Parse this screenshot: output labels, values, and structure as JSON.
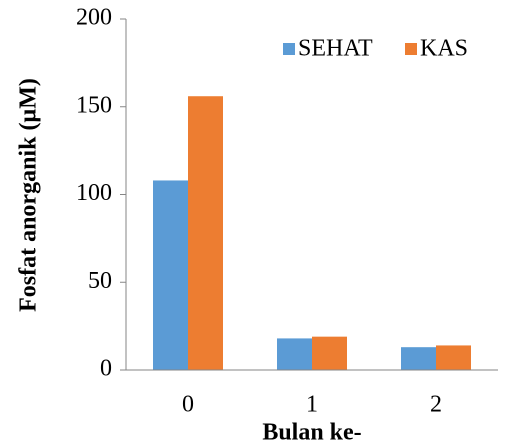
{
  "chart_data": {
    "type": "bar",
    "x_label": "Bulan ke-",
    "y_label": "Fosfat anorganik (µM)",
    "categories": [
      "0",
      "1",
      "2"
    ],
    "series": [
      {
        "name": "SEHAT",
        "color": "#5b9bd5",
        "values": [
          108,
          18,
          13
        ]
      },
      {
        "name": "KAS",
        "color": "#ed7d31",
        "values": [
          156,
          19,
          14
        ]
      }
    ],
    "ylim": [
      0,
      200
    ],
    "yticks": [
      0,
      50,
      100,
      150,
      200
    ],
    "grid": false,
    "legend": "top-right"
  }
}
